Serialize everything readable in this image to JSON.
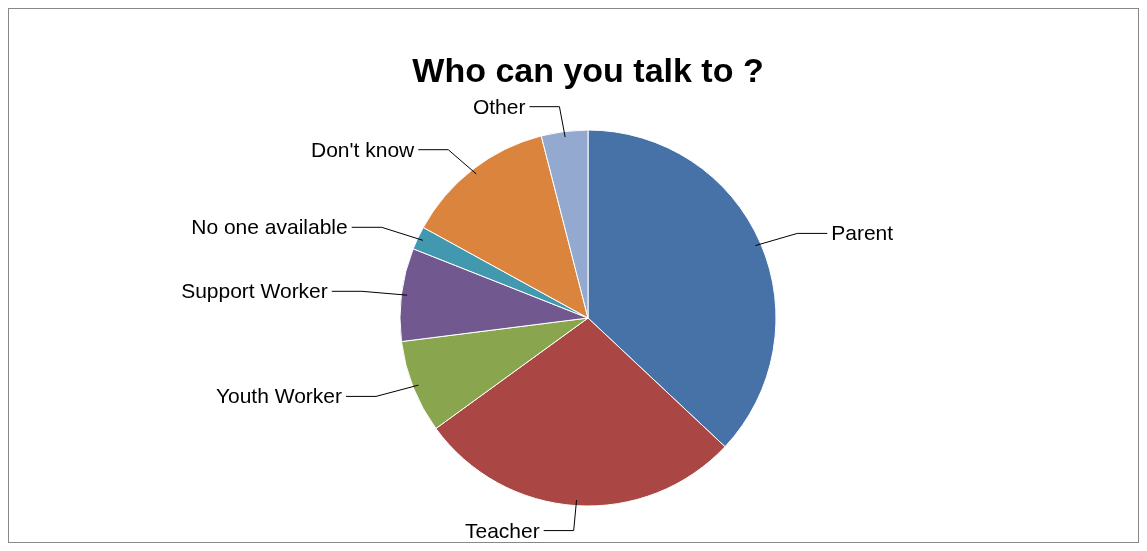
{
  "chart_data": {
    "type": "pie",
    "title": "Who can you talk to ?",
    "categories": [
      "Parent",
      "Teacher",
      "Youth Worker",
      "Support Worker",
      "No one available",
      "Don't know",
      "Other"
    ],
    "values": [
      37,
      28,
      8,
      8,
      2,
      13,
      4
    ],
    "colors": [
      "#4672a8",
      "#aa4643",
      "#89a54e",
      "#71588f",
      "#4198af",
      "#db843d",
      "#93a9cf"
    ]
  }
}
